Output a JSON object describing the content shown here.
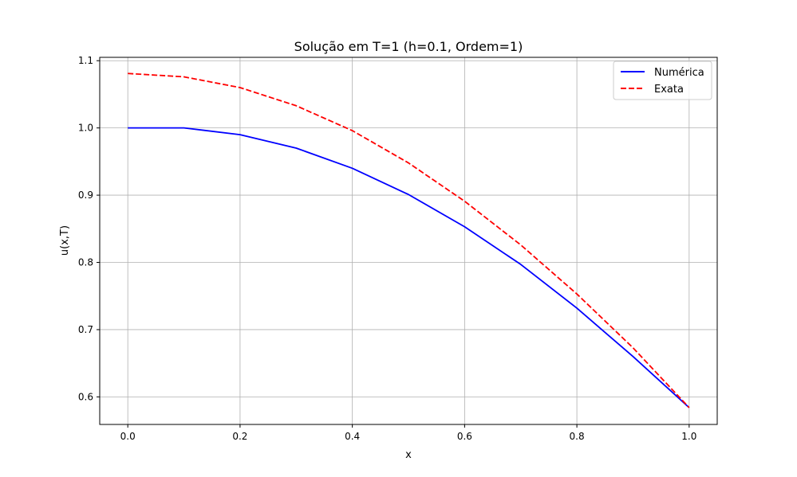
{
  "chart_data": {
    "type": "line",
    "title": "Solução em T=1 (h=0.1, Ordem=1)",
    "xlabel": "x",
    "ylabel": "u(x,T)",
    "xlim": [
      -0.05,
      1.05
    ],
    "ylim": [
      0.559,
      1.105
    ],
    "xticks": [
      0.0,
      0.2,
      0.4,
      0.6,
      0.8,
      1.0
    ],
    "xtick_labels": [
      "0.0",
      "0.2",
      "0.4",
      "0.6",
      "0.8",
      "1.0"
    ],
    "yticks": [
      0.6,
      0.7,
      0.8,
      0.9,
      1.0,
      1.1
    ],
    "ytick_labels": [
      "0.6",
      "0.7",
      "0.8",
      "0.9",
      "1.0",
      "1.1"
    ],
    "grid": true,
    "legend_position": "top-right",
    "x": [
      0.0,
      0.1,
      0.2,
      0.3,
      0.4,
      0.5,
      0.6,
      0.7,
      0.8,
      0.9,
      1.0
    ],
    "series": [
      {
        "name": "Numérica",
        "color": "#0000ff",
        "line_style": "solid",
        "values": [
          1.0,
          1.0,
          0.99,
          0.97,
          0.94,
          0.901,
          0.853,
          0.797,
          0.732,
          0.66,
          0.584
        ]
      },
      {
        "name": "Exata",
        "color": "#ff0000",
        "line_style": "dashed",
        "values": [
          1.081,
          1.076,
          1.06,
          1.033,
          0.996,
          0.948,
          0.891,
          0.826,
          0.753,
          0.673,
          0.584
        ]
      }
    ]
  }
}
